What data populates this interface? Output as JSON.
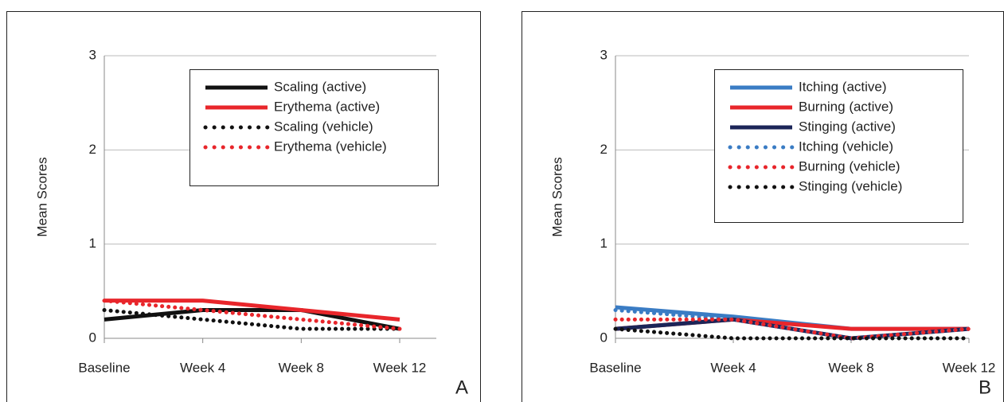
{
  "chart_data": [
    {
      "type": "line",
      "ylabel": "Mean Scores",
      "panel_label": "A",
      "categories": [
        "Baseline",
        "Week 4",
        "Week 8",
        "Week 12"
      ],
      "ylim": [
        0,
        3
      ],
      "yticks": [
        0,
        1,
        2,
        3
      ],
      "grid": true,
      "series": [
        {
          "name": "Scaling (active)",
          "color": "#111111",
          "style": "solid",
          "values": [
            0.2,
            0.3,
            0.3,
            0.1
          ]
        },
        {
          "name": "Erythema (active)",
          "color": "#e8262b",
          "style": "solid",
          "values": [
            0.4,
            0.4,
            0.3,
            0.2
          ]
        },
        {
          "name": "Scaling (vehicle)",
          "color": "#111111",
          "style": "dotted",
          "values": [
            0.3,
            0.2,
            0.1,
            0.1
          ]
        },
        {
          "name": "Erythema (vehicle)",
          "color": "#e8262b",
          "style": "dotted",
          "values": [
            0.4,
            0.3,
            0.2,
            0.1
          ]
        }
      ]
    },
    {
      "type": "line",
      "ylabel": "Mean Scores",
      "panel_label": "B",
      "categories": [
        "Baseline",
        "Week 4",
        "Week 8",
        "Week 12"
      ],
      "ylim": [
        0,
        3
      ],
      "yticks": [
        0,
        1,
        2,
        3
      ],
      "grid": true,
      "series": [
        {
          "name": "Itching (active)",
          "color": "#3a7cc4",
          "style": "solid",
          "values": [
            0.33,
            0.23,
            0.1,
            0.1
          ]
        },
        {
          "name": "Burning (active)",
          "color": "#e8262b",
          "style": "solid",
          "values": [
            0.1,
            0.2,
            0.1,
            0.1
          ]
        },
        {
          "name": "Stinging (active)",
          "color": "#1c2558",
          "style": "solid",
          "values": [
            0.1,
            0.2,
            0.0,
            0.1
          ]
        },
        {
          "name": "Itching (vehicle)",
          "color": "#3a7cc4",
          "style": "dotted",
          "values": [
            0.3,
            0.2,
            0.0,
            0.1
          ]
        },
        {
          "name": "Burning (vehicle)",
          "color": "#e8262b",
          "style": "dotted",
          "values": [
            0.2,
            0.2,
            0.0,
            0.1
          ]
        },
        {
          "name": "Stinging (vehicle)",
          "color": "#111111",
          "style": "dotted",
          "values": [
            0.1,
            0.0,
            0.0,
            0.0
          ]
        }
      ]
    }
  ]
}
